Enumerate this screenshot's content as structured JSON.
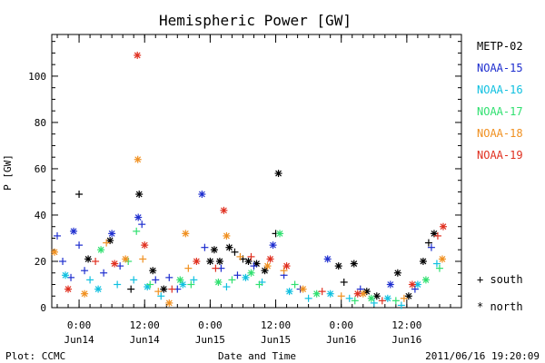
{
  "chart_data": {
    "type": "scatter",
    "title": "Hemispheric Power [GW]",
    "xlabel": "Date and Time",
    "ylabel": "P [GW]",
    "ylim": [
      0,
      118
    ],
    "xlim": [
      "2011-06-13 19:00",
      "2011-06-16 22:00"
    ],
    "y_ticks": [
      0,
      20,
      40,
      60,
      80,
      100
    ],
    "x_ticks": [
      {
        "time": "2011-06-14 00:00",
        "line1": "0:00",
        "line2": "Jun14"
      },
      {
        "time": "2011-06-14 12:00",
        "line1": "12:00",
        "line2": "Jun14"
      },
      {
        "time": "2011-06-15 00:00",
        "line1": "0:00",
        "line2": "Jun15"
      },
      {
        "time": "2011-06-15 12:00",
        "line1": "12:00",
        "line2": "Jun15"
      },
      {
        "time": "2011-06-16 00:00",
        "line1": "0:00",
        "line2": "Jun16"
      },
      {
        "time": "2011-06-16 12:00",
        "line1": "12:00",
        "line2": "Jun16"
      }
    ],
    "grid": false,
    "legend_position": "right",
    "marker_legend": [
      {
        "symbol": "+",
        "label": "south"
      },
      {
        "symbol": "*",
        "label": "north"
      }
    ],
    "series": [
      {
        "name": "METP-02",
        "color": "#000000",
        "points": [
          {
            "x": "2011-06-14 00:00",
            "y": 49,
            "h": "south"
          },
          {
            "x": "2011-06-14 01:40",
            "y": 21,
            "h": "north"
          },
          {
            "x": "2011-06-14 05:40",
            "y": 29,
            "h": "north"
          },
          {
            "x": "2011-06-14 09:30",
            "y": 8,
            "h": "south"
          },
          {
            "x": "2011-06-14 11:00",
            "y": 49,
            "h": "north"
          },
          {
            "x": "2011-06-14 13:30",
            "y": 16,
            "h": "north"
          },
          {
            "x": "2011-06-14 15:30",
            "y": 8,
            "h": "north"
          },
          {
            "x": "2011-06-15 00:00",
            "y": 20,
            "h": "north"
          },
          {
            "x": "2011-06-15 00:45",
            "y": 25,
            "h": "north"
          },
          {
            "x": "2011-06-15 01:45",
            "y": 20,
            "h": "north"
          },
          {
            "x": "2011-06-15 03:30",
            "y": 26,
            "h": "north"
          },
          {
            "x": "2011-06-15 04:30",
            "y": 24,
            "h": "south"
          },
          {
            "x": "2011-06-15 06:00",
            "y": 21,
            "h": "south"
          },
          {
            "x": "2011-06-15 07:00",
            "y": 20,
            "h": "north"
          },
          {
            "x": "2011-06-15 08:30",
            "y": 19,
            "h": "north"
          },
          {
            "x": "2011-06-15 10:00",
            "y": 16,
            "h": "north"
          },
          {
            "x": "2011-06-15 12:00",
            "y": 32,
            "h": "south"
          },
          {
            "x": "2011-06-15 12:30",
            "y": 58,
            "h": "north"
          },
          {
            "x": "2011-06-15 23:30",
            "y": 18,
            "h": "north"
          },
          {
            "x": "2011-06-16 00:30",
            "y": 11,
            "h": "south"
          },
          {
            "x": "2011-06-16 02:20",
            "y": 19,
            "h": "north"
          },
          {
            "x": "2011-06-16 04:40",
            "y": 7,
            "h": "north"
          },
          {
            "x": "2011-06-16 06:30",
            "y": 5,
            "h": "north"
          },
          {
            "x": "2011-06-16 10:20",
            "y": 15,
            "h": "north"
          },
          {
            "x": "2011-06-16 12:20",
            "y": 5,
            "h": "north"
          },
          {
            "x": "2011-06-16 15:00",
            "y": 20,
            "h": "north"
          },
          {
            "x": "2011-06-16 16:00",
            "y": 28,
            "h": "south"
          },
          {
            "x": "2011-06-16 17:00",
            "y": 32,
            "h": "north"
          }
        ]
      },
      {
        "name": "NOAA-15",
        "color": "#1f2fcf",
        "points": [
          {
            "x": "2011-06-13 20:00",
            "y": 31,
            "h": "south"
          },
          {
            "x": "2011-06-13 21:00",
            "y": 20,
            "h": "south"
          },
          {
            "x": "2011-06-13 22:30",
            "y": 13,
            "h": "south"
          },
          {
            "x": "2011-06-14 00:00",
            "y": 27,
            "h": "south"
          },
          {
            "x": "2011-06-14 01:00",
            "y": 16,
            "h": "south"
          },
          {
            "x": "2011-06-13 23:00",
            "y": 33,
            "h": "north"
          },
          {
            "x": "2011-06-14 04:30",
            "y": 15,
            "h": "south"
          },
          {
            "x": "2011-06-14 06:00",
            "y": 32,
            "h": "north"
          },
          {
            "x": "2011-06-14 07:30",
            "y": 18,
            "h": "south"
          },
          {
            "x": "2011-06-14 10:50",
            "y": 39,
            "h": "north"
          },
          {
            "x": "2011-06-14 11:30",
            "y": 36,
            "h": "south"
          },
          {
            "x": "2011-06-14 14:00",
            "y": 12,
            "h": "south"
          },
          {
            "x": "2011-06-14 16:30",
            "y": 13,
            "h": "south"
          },
          {
            "x": "2011-06-14 18:00",
            "y": 8,
            "h": "south"
          },
          {
            "x": "2011-06-14 22:30",
            "y": 49,
            "h": "north"
          },
          {
            "x": "2011-06-14 23:00",
            "y": 26,
            "h": "south"
          },
          {
            "x": "2011-06-15 02:00",
            "y": 17,
            "h": "south"
          },
          {
            "x": "2011-06-15 05:00",
            "y": 14,
            "h": "south"
          },
          {
            "x": "2011-06-15 08:00",
            "y": 18,
            "h": "south"
          },
          {
            "x": "2011-06-15 11:30",
            "y": 27,
            "h": "north"
          },
          {
            "x": "2011-06-15 13:30",
            "y": 14,
            "h": "south"
          },
          {
            "x": "2011-06-15 16:30",
            "y": 8,
            "h": "south"
          },
          {
            "x": "2011-06-15 21:30",
            "y": 21,
            "h": "north"
          },
          {
            "x": "2011-06-16 03:30",
            "y": 8,
            "h": "south"
          },
          {
            "x": "2011-06-16 09:00",
            "y": 10,
            "h": "north"
          },
          {
            "x": "2011-06-16 13:30",
            "y": 8,
            "h": "south"
          },
          {
            "x": "2011-06-16 16:30",
            "y": 26,
            "h": "south"
          }
        ]
      },
      {
        "name": "NOAA-16",
        "color": "#10c0e0",
        "points": [
          {
            "x": "2011-06-13 21:30",
            "y": 14,
            "h": "north"
          },
          {
            "x": "2011-06-14 02:00",
            "y": 12,
            "h": "south"
          },
          {
            "x": "2011-06-14 03:30",
            "y": 8,
            "h": "north"
          },
          {
            "x": "2011-06-14 07:00",
            "y": 10,
            "h": "south"
          },
          {
            "x": "2011-06-14 10:00",
            "y": 12,
            "h": "south"
          },
          {
            "x": "2011-06-14 12:30",
            "y": 9,
            "h": "north"
          },
          {
            "x": "2011-06-14 15:00",
            "y": 5,
            "h": "south"
          },
          {
            "x": "2011-06-14 19:00",
            "y": 10,
            "h": "north"
          },
          {
            "x": "2011-06-14 21:00",
            "y": 12,
            "h": "south"
          },
          {
            "x": "2011-06-15 03:00",
            "y": 9,
            "h": "south"
          },
          {
            "x": "2011-06-15 06:30",
            "y": 13,
            "h": "north"
          },
          {
            "x": "2011-06-15 09:30",
            "y": 11,
            "h": "south"
          },
          {
            "x": "2011-06-15 14:30",
            "y": 7,
            "h": "north"
          },
          {
            "x": "2011-06-15 18:00",
            "y": 4,
            "h": "south"
          },
          {
            "x": "2011-06-15 22:00",
            "y": 6,
            "h": "north"
          },
          {
            "x": "2011-06-16 01:30",
            "y": 4,
            "h": "south"
          },
          {
            "x": "2011-06-16 06:00",
            "y": 2,
            "h": "south"
          },
          {
            "x": "2011-06-16 08:30",
            "y": 4,
            "h": "north"
          },
          {
            "x": "2011-06-16 11:00",
            "y": 1,
            "h": "south"
          },
          {
            "x": "2011-06-16 14:00",
            "y": 10,
            "h": "north"
          },
          {
            "x": "2011-06-16 17:30",
            "y": 19,
            "h": "south"
          }
        ]
      },
      {
        "name": "NOAA-17",
        "color": "#30e070",
        "points": [
          {
            "x": "2011-06-14 04:00",
            "y": 25,
            "h": "north"
          },
          {
            "x": "2011-06-14 09:00",
            "y": 20,
            "h": "south"
          },
          {
            "x": "2011-06-14 10:30",
            "y": 33,
            "h": "south"
          },
          {
            "x": "2011-06-14 13:00",
            "y": 10,
            "h": "south"
          },
          {
            "x": "2011-06-14 18:30",
            "y": 12,
            "h": "north"
          },
          {
            "x": "2011-06-14 20:30",
            "y": 10,
            "h": "south"
          },
          {
            "x": "2011-06-15 01:30",
            "y": 11,
            "h": "north"
          },
          {
            "x": "2011-06-15 04:00",
            "y": 12,
            "h": "south"
          },
          {
            "x": "2011-06-15 07:30",
            "y": 15,
            "h": "north"
          },
          {
            "x": "2011-06-15 09:00",
            "y": 10,
            "h": "south"
          },
          {
            "x": "2011-06-15 12:45",
            "y": 32,
            "h": "north"
          },
          {
            "x": "2011-06-15 15:30",
            "y": 10,
            "h": "south"
          },
          {
            "x": "2011-06-15 19:30",
            "y": 6,
            "h": "north"
          },
          {
            "x": "2011-06-16 02:30",
            "y": 3,
            "h": "south"
          },
          {
            "x": "2011-06-16 05:30",
            "y": 4,
            "h": "north"
          },
          {
            "x": "2011-06-16 10:00",
            "y": 3,
            "h": "south"
          },
          {
            "x": "2011-06-16 15:30",
            "y": 12,
            "h": "north"
          },
          {
            "x": "2011-06-16 18:00",
            "y": 17,
            "h": "south"
          }
        ]
      },
      {
        "name": "NOAA-18",
        "color": "#f09020",
        "points": [
          {
            "x": "2011-06-13 19:30",
            "y": 24,
            "h": "north"
          },
          {
            "x": "2011-06-14 01:00",
            "y": 6,
            "h": "north"
          },
          {
            "x": "2011-06-14 05:00",
            "y": 28,
            "h": "south"
          },
          {
            "x": "2011-06-14 08:30",
            "y": 21,
            "h": "north"
          },
          {
            "x": "2011-06-14 10:45",
            "y": 64,
            "h": "north"
          },
          {
            "x": "2011-06-14 11:40",
            "y": 21,
            "h": "south"
          },
          {
            "x": "2011-06-14 14:30",
            "y": 7,
            "h": "south"
          },
          {
            "x": "2011-06-14 16:30",
            "y": 2,
            "h": "north"
          },
          {
            "x": "2011-06-14 19:30",
            "y": 32,
            "h": "north"
          },
          {
            "x": "2011-06-14 20:00",
            "y": 17,
            "h": "south"
          },
          {
            "x": "2011-06-15 03:00",
            "y": 31,
            "h": "north"
          },
          {
            "x": "2011-06-15 05:30",
            "y": 22,
            "h": "south"
          },
          {
            "x": "2011-06-15 10:30",
            "y": 18,
            "h": "north"
          },
          {
            "x": "2011-06-15 13:30",
            "y": 16,
            "h": "south"
          },
          {
            "x": "2011-06-15 17:00",
            "y": 8,
            "h": "north"
          },
          {
            "x": "2011-06-16 00:00",
            "y": 5,
            "h": "south"
          },
          {
            "x": "2011-06-16 04:00",
            "y": 6,
            "h": "north"
          },
          {
            "x": "2011-06-16 11:30",
            "y": 4,
            "h": "south"
          },
          {
            "x": "2011-06-16 18:30",
            "y": 21,
            "h": "north"
          }
        ]
      },
      {
        "name": "NOAA-19",
        "color": "#e03020",
        "points": [
          {
            "x": "2011-06-13 22:00",
            "y": 8,
            "h": "north"
          },
          {
            "x": "2011-06-14 03:00",
            "y": 20,
            "h": "south"
          },
          {
            "x": "2011-06-14 06:30",
            "y": 19,
            "h": "north"
          },
          {
            "x": "2011-06-14 10:40",
            "y": 109,
            "h": "north"
          },
          {
            "x": "2011-06-14 12:00",
            "y": 27,
            "h": "north"
          },
          {
            "x": "2011-06-14 17:00",
            "y": 8,
            "h": "south"
          },
          {
            "x": "2011-06-14 21:30",
            "y": 20,
            "h": "north"
          },
          {
            "x": "2011-06-15 01:00",
            "y": 17,
            "h": "south"
          },
          {
            "x": "2011-06-15 02:30",
            "y": 42,
            "h": "north"
          },
          {
            "x": "2011-06-15 07:30",
            "y": 22,
            "h": "south"
          },
          {
            "x": "2011-06-15 11:00",
            "y": 21,
            "h": "north"
          },
          {
            "x": "2011-06-15 14:00",
            "y": 18,
            "h": "north"
          },
          {
            "x": "2011-06-15 20:30",
            "y": 7,
            "h": "south"
          },
          {
            "x": "2011-06-16 03:00",
            "y": 6,
            "h": "north"
          },
          {
            "x": "2011-06-16 07:30",
            "y": 3,
            "h": "south"
          },
          {
            "x": "2011-06-16 13:00",
            "y": 10,
            "h": "north"
          },
          {
            "x": "2011-06-16 17:40",
            "y": 31,
            "h": "south"
          },
          {
            "x": "2011-06-16 18:40",
            "y": 35,
            "h": "north"
          }
        ]
      }
    ]
  },
  "footer": {
    "left": "Plot: CCMC",
    "center": "Date and Time",
    "right": "2011/06/16 19:20:09"
  }
}
